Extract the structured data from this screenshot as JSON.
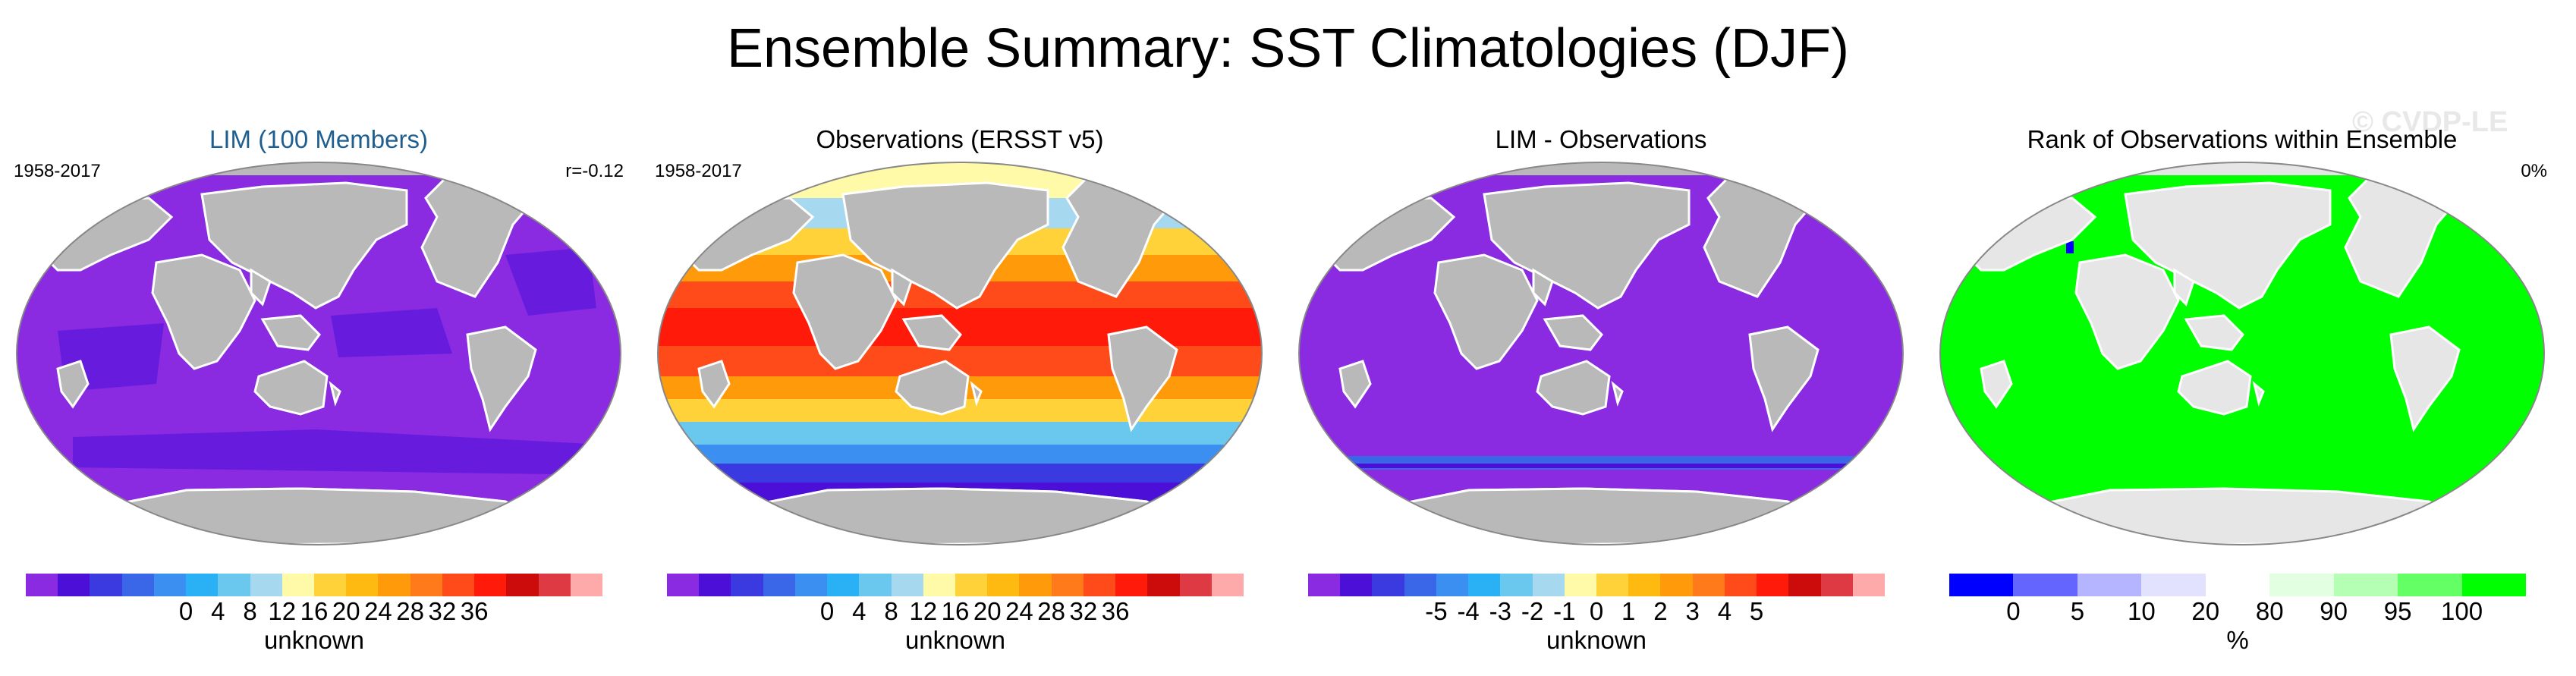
{
  "title": "Ensemble Summary: SST Climatologies (DJF)",
  "watermark": "© CVDP-LE",
  "chart_data": [
    {
      "type": "heatmap",
      "title": "LIM (100 Members)",
      "period": "1958-2017",
      "stat": "r=-0.12",
      "map_fill": "#8a2be2",
      "colorbar": {
        "colors": [
          "#8a2be2",
          "#4b0fd8",
          "#3a3ae0",
          "#3a66e8",
          "#3a8ff0",
          "#2ab0f5",
          "#6ac8ef",
          "#a6d9ef",
          "#fffaa8",
          "#ffd23a",
          "#ffba12",
          "#ff9a0a",
          "#ff7a1a",
          "#ff4a1a",
          "#ff1a0a",
          "#cc0b0b",
          "#dd3a44",
          "#ffaaaa"
        ],
        "ticks": [
          "0",
          "4",
          "8",
          "12",
          "16",
          "20",
          "24",
          "28",
          "32",
          "36"
        ],
        "label": "unknown"
      }
    },
    {
      "type": "heatmap",
      "title": "Observations (ERSST v5)",
      "period": "1958-2017",
      "stat": "",
      "colorbar": {
        "colors": [
          "#8a2be2",
          "#4b0fd8",
          "#3a3ae0",
          "#3a66e8",
          "#3a8ff0",
          "#2ab0f5",
          "#6ac8ef",
          "#a6d9ef",
          "#fffaa8",
          "#ffd23a",
          "#ffba12",
          "#ff9a0a",
          "#ff7a1a",
          "#ff4a1a",
          "#ff1a0a",
          "#cc0b0b",
          "#dd3a44",
          "#ffaaaa"
        ],
        "ticks": [
          "0",
          "4",
          "8",
          "12",
          "16",
          "20",
          "24",
          "28",
          "32",
          "36"
        ],
        "label": "unknown"
      }
    },
    {
      "type": "heatmap",
      "title": "LIM - Observations",
      "period": "",
      "stat": "",
      "map_fill": "#8a2be2",
      "colorbar": {
        "colors": [
          "#8a2be2",
          "#4b0fd8",
          "#3a3ae0",
          "#3a66e8",
          "#3a8ff0",
          "#2ab0f5",
          "#6ac8ef",
          "#a6d9ef",
          "#fffaa8",
          "#ffd23a",
          "#ffba12",
          "#ff9a0a",
          "#ff7a1a",
          "#ff4a1a",
          "#ff1a0a",
          "#cc0b0b",
          "#dd3a44",
          "#ffaaaa"
        ],
        "ticks": [
          "-5",
          "-4",
          "-3",
          "-2",
          "-1",
          "0",
          "1",
          "2",
          "3",
          "4",
          "5"
        ],
        "label": "unknown"
      }
    },
    {
      "type": "heatmap",
      "title": "Rank of Observations within Ensemble",
      "period": "",
      "stat": "0%",
      "map_fill": "#00ff00",
      "colorbar": {
        "colors": [
          "#0000ff",
          "#6464ff",
          "#b4b4ff",
          "#e2e2ff",
          "#ffffff",
          "#e2ffe2",
          "#b4ffb4",
          "#64ff64",
          "#00ff00"
        ],
        "ticks": [
          "0",
          "5",
          "10",
          "20",
          "80",
          "90",
          "95",
          "100"
        ],
        "label": "%"
      }
    }
  ]
}
